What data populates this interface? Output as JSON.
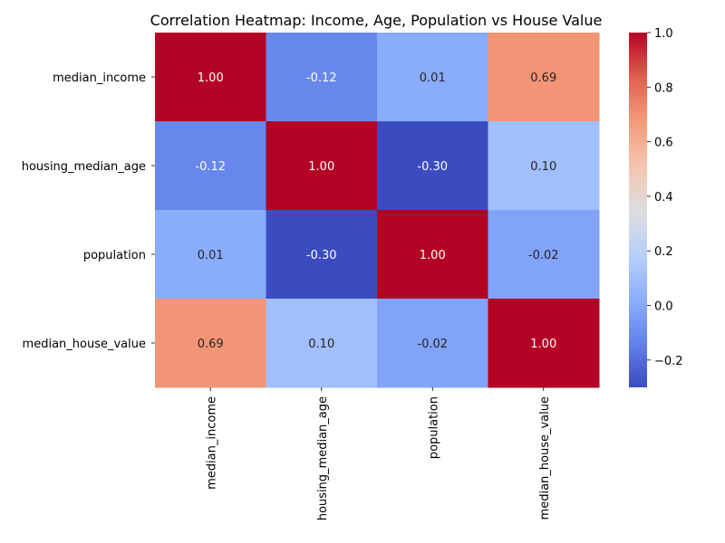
{
  "chart_data": {
    "type": "heatmap",
    "title": "Correlation Heatmap: Income, Age, Population vs House Value",
    "xlabel": "",
    "ylabel": "",
    "x_labels": [
      "median_income",
      "housing_median_age",
      "population",
      "median_house_value"
    ],
    "y_labels": [
      "median_income",
      "housing_median_age",
      "population",
      "median_house_value"
    ],
    "values": [
      [
        1.0,
        -0.12,
        0.01,
        0.69
      ],
      [
        -0.12,
        1.0,
        -0.3,
        0.1
      ],
      [
        0.01,
        -0.3,
        1.0,
        -0.02
      ],
      [
        0.69,
        0.1,
        -0.02,
        1.0
      ]
    ],
    "value_format": "0.00",
    "colormap": "coolwarm",
    "colorbar": {
      "min": -0.3,
      "max": 1.0,
      "ticks": [
        -0.2,
        0.0,
        0.2,
        0.4,
        0.6,
        0.8,
        1.0
      ],
      "tick_labels": [
        "−0.2",
        "0.0",
        "0.2",
        "0.4",
        "0.6",
        "0.8",
        "1.0"
      ]
    },
    "grid": false
  }
}
